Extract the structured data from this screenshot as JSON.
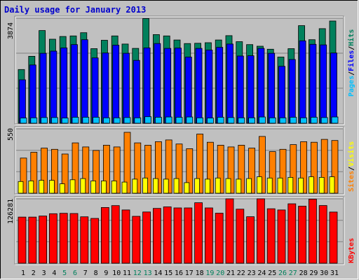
{
  "title": "Daily usage for January 2013",
  "colors": {
    "background": "#c0c0c0",
    "title": "#0000cc",
    "hits": "#00805c",
    "files": "#0000ff",
    "pages": "#00c0ff",
    "visits": "#ffff00",
    "sites": "#ff8000",
    "kbytes": "#ff0000",
    "weekend_day": "#00805c",
    "weekday": "#000000",
    "gridline": "#808080"
  },
  "chart_data": [
    {
      "type": "bar",
      "panel": "hits-files-pages",
      "ymax_label": "3874",
      "ylim": [
        0,
        3874
      ],
      "grid": true,
      "legend": [
        "Pages",
        "/",
        "Files",
        "/",
        "Hits"
      ],
      "categories": [
        "1",
        "2",
        "3",
        "4",
        "5",
        "6",
        "7",
        "8",
        "9",
        "10",
        "11",
        "12",
        "13",
        "14",
        "15",
        "16",
        "17",
        "18",
        "19",
        "20",
        "21",
        "22",
        "23",
        "24",
        "25",
        "26",
        "27",
        "28",
        "29",
        "30",
        "31"
      ],
      "series": [
        {
          "name": "Hits",
          "values": [
            1980,
            2470,
            3420,
            3100,
            3200,
            3220,
            3340,
            2750,
            3060,
            3220,
            2920,
            2760,
            3860,
            3270,
            3220,
            3070,
            2940,
            2950,
            2970,
            3070,
            3230,
            3010,
            2900,
            2840,
            2730,
            2440,
            2750,
            3600,
            3080,
            3490,
            3770
          ]
        },
        {
          "name": "Files",
          "values": [
            1600,
            2150,
            2580,
            2660,
            2780,
            2900,
            3080,
            2410,
            2590,
            2880,
            2580,
            2320,
            2780,
            2940,
            2760,
            2770,
            2440,
            2760,
            2700,
            2800,
            2920,
            2480,
            2490,
            2760,
            2580,
            2100,
            2350,
            3040,
            2910,
            2890,
            2590
          ]
        },
        {
          "name": "Pages",
          "values": [
            190,
            200,
            210,
            210,
            190,
            220,
            220,
            220,
            200,
            200,
            210,
            200,
            240,
            220,
            230,
            220,
            230,
            200,
            190,
            220,
            210,
            200,
            200,
            230,
            200,
            200,
            220,
            200,
            220,
            210,
            230
          ]
        }
      ]
    },
    {
      "type": "bar",
      "panel": "visits-sites",
      "ymax_label": "550",
      "ylim": [
        0,
        550
      ],
      "grid": true,
      "legend": [
        "Sites",
        "/",
        "Visits"
      ],
      "categories": [
        "1",
        "2",
        "3",
        "4",
        "5",
        "6",
        "7",
        "8",
        "9",
        "10",
        "11",
        "12",
        "13",
        "14",
        "15",
        "16",
        "17",
        "18",
        "19",
        "20",
        "21",
        "22",
        "23",
        "24",
        "25",
        "26",
        "27",
        "28",
        "29",
        "30",
        "31"
      ],
      "series": [
        {
          "name": "Visits",
          "values": [
            100,
            105,
            110,
            110,
            80,
            115,
            125,
            105,
            105,
            105,
            95,
            120,
            130,
            125,
            120,
            125,
            90,
            125,
            120,
            130,
            125,
            120,
            125,
            140,
            130,
            130,
            135,
            130,
            140,
            135,
            140
          ]
        },
        {
          "name": "Sites",
          "values": [
            300,
            350,
            385,
            375,
            335,
            430,
            395,
            365,
            410,
            395,
            520,
            430,
            410,
            440,
            455,
            420,
            380,
            505,
            435,
            410,
            395,
            410,
            385,
            485,
            355,
            375,
            415,
            440,
            435,
            460,
            450
          ]
        }
      ]
    },
    {
      "type": "bar",
      "panel": "kbytes",
      "ymax_label": "126281",
      "ylim": [
        0,
        126281
      ],
      "grid": true,
      "legend": [
        "KBytes"
      ],
      "categories": [
        "1",
        "2",
        "3",
        "4",
        "5",
        "6",
        "7",
        "8",
        "9",
        "10",
        "11",
        "12",
        "13",
        "14",
        "15",
        "16",
        "17",
        "18",
        "19",
        "20",
        "21",
        "22",
        "23",
        "24",
        "25",
        "26",
        "27",
        "28",
        "29",
        "30",
        "31"
      ],
      "series": [
        {
          "name": "KBytes",
          "values": [
            90500,
            90500,
            92500,
            97000,
            97800,
            97500,
            91000,
            87800,
            109200,
            113000,
            104500,
            92000,
            100500,
            107500,
            110500,
            108500,
            108500,
            118600,
            108500,
            98200,
            126300,
            106000,
            91200,
            126300,
            106800,
            104500,
            116600,
            111800,
            125600,
            113100,
            100300
          ]
        }
      ]
    }
  ],
  "weekend_days": [
    "5",
    "6",
    "12",
    "13",
    "19",
    "20",
    "26",
    "27"
  ]
}
